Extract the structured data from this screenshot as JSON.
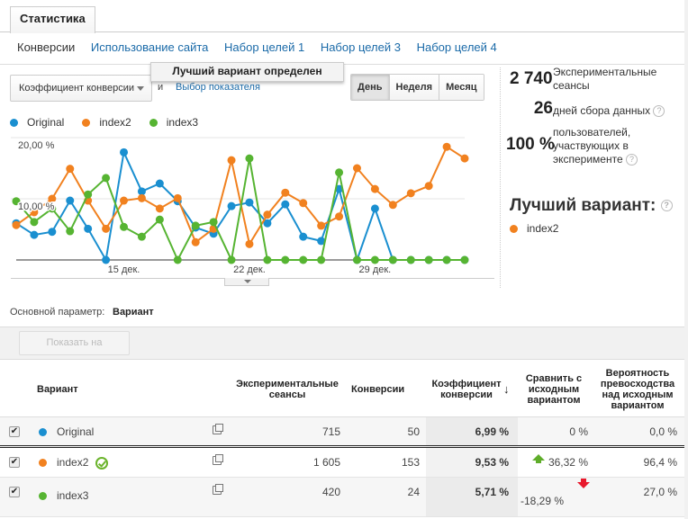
{
  "tabs": {
    "active": "Статистика"
  },
  "subnav": [
    {
      "label": "Конверсии",
      "active": true
    },
    {
      "label": "Использование сайта",
      "active": false
    },
    {
      "label": "Набор целей 1",
      "active": false
    },
    {
      "label": "Набор целей 3",
      "active": false
    },
    {
      "label": "Набор целей 4",
      "active": false
    }
  ],
  "banner": "Лучший вариант определен",
  "controls": {
    "metric_select": "Коэффициент конверсии",
    "and_label": "и",
    "metric_link": "Выбор показателя",
    "periods": [
      "День",
      "Неделя",
      "Месяц"
    ],
    "active_period": "День"
  },
  "legend": [
    {
      "label": "Original",
      "color": "#1a8fd0"
    },
    {
      "label": "index2",
      "color": "#f1811f"
    },
    {
      "label": "index3",
      "color": "#56b432"
    }
  ],
  "chart_data": {
    "type": "line",
    "title": "",
    "xlabel": "",
    "ylabel": "Коэффициент конверсии",
    "ylim": [
      0,
      20
    ],
    "y_ticks": [
      "20,00 %",
      "10,00 %"
    ],
    "x_tick_labels": [
      {
        "index": 6,
        "label": "15 дек."
      },
      {
        "index": 13,
        "label": "22 дек."
      },
      {
        "index": 20,
        "label": "29 дек."
      }
    ],
    "x": [
      1,
      2,
      3,
      4,
      5,
      6,
      7,
      8,
      9,
      10,
      11,
      12,
      13,
      14,
      15,
      16,
      17,
      18,
      19,
      20,
      21,
      22,
      23,
      24,
      25,
      26
    ],
    "grid": true,
    "legend_position": "top",
    "series": [
      {
        "name": "Original",
        "color": "#1a8fd0",
        "values": [
          6.0,
          4.1,
          4.6,
          9.7,
          5.1,
          0.0,
          17.6,
          11.2,
          12.5,
          9.6,
          5.3,
          4.3,
          8.8,
          9.4,
          6.0,
          9.1,
          3.8,
          3.1,
          11.6,
          0.0,
          8.4,
          0.0,
          0.0,
          0.0,
          0.0,
          0.0
        ]
      },
      {
        "name": "index2",
        "color": "#f1811f",
        "values": [
          5.7,
          7.8,
          10.0,
          14.9,
          9.7,
          5.1,
          9.7,
          10.1,
          8.4,
          10.1,
          2.9,
          5.1,
          16.3,
          2.6,
          7.4,
          11.0,
          9.3,
          5.6,
          7.1,
          15.0,
          11.6,
          9.0,
          10.9,
          12.1,
          18.5,
          16.6
        ]
      },
      {
        "name": "index3",
        "color": "#56b432",
        "values": [
          9.6,
          6.2,
          8.4,
          4.7,
          10.7,
          13.4,
          5.4,
          3.8,
          6.6,
          0.0,
          5.6,
          6.2,
          0.0,
          16.6,
          0.0,
          0.0,
          0.0,
          0.0,
          14.3,
          0.0,
          0.0,
          0.0,
          0.0,
          0.0,
          0.0,
          0.0
        ]
      }
    ]
  },
  "stats": {
    "sessions_value": "2 740",
    "sessions_label_1": "Экспериментальные",
    "sessions_label_2": "сеансы",
    "days_value": "26",
    "days_label": "дней сбора данных",
    "users_value": "100 %",
    "users_label_1": "пользователей,",
    "users_label_2": "участвующих в",
    "users_label_3": "эксперименте",
    "help": "?"
  },
  "best": {
    "title": "Лучший вариант:",
    "variant": "index2",
    "color": "#f1811f"
  },
  "dimension": {
    "label": "Основной параметр:",
    "value": "Вариант"
  },
  "show_on_chart": "Показать на диаграмме",
  "table": {
    "headers": {
      "variant": "Вариант",
      "sessions_1": "Экспериментальные",
      "sessions_2": "сеансы",
      "conversions": "Конверсии",
      "rate_1": "Коэффициент",
      "rate_2": "конверсии",
      "sort_arrow": "↓",
      "compare_1": "Сравнить с",
      "compare_2": "исходным",
      "compare_3": "вариантом",
      "prob_1": "Вероятность",
      "prob_2": "превосходства",
      "prob_3": "над исходным",
      "prob_4": "вариантом"
    },
    "rows": [
      {
        "name": "Original",
        "color": "#1a8fd0",
        "sessions": "715",
        "conversions": "50",
        "rate": "6,99 %",
        "compare": "0 %",
        "probability": "0,0 %"
      },
      {
        "name": "index2",
        "color": "#f1811f",
        "sessions": "1 605",
        "conversions": "153",
        "rate": "9,53 %",
        "compare": "36,32 %",
        "probability": "96,4 %"
      },
      {
        "name": "index3",
        "color": "#56b432",
        "sessions": "420",
        "conversions": "24",
        "rate": "5,71 %",
        "compare": "-18,29 %",
        "probability": "27,0 %"
      }
    ]
  }
}
